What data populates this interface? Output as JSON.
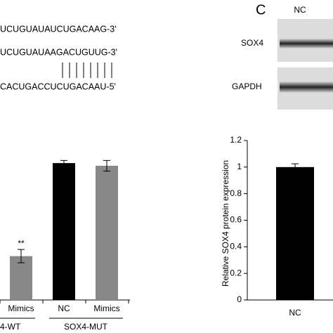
{
  "sequences": [
    "UCUGUAUAUCUGACAAG-3'",
    "UCUGUAUAAGACUGUUG-3'",
    "CACUGACCUCUGACAAU-5'"
  ],
  "panel_label": "C",
  "blot": {
    "column": "NC",
    "rows": [
      "SOX4",
      "GAPDH"
    ]
  },
  "chart_data": [
    {
      "type": "bar",
      "categories": [
        "Mimics",
        "NC",
        "Mimics"
      ],
      "groups": [
        "4-WT",
        "SOX4-MUT"
      ],
      "values": [
        0.33,
        1.03,
        1.01
      ],
      "errors": [
        0.05,
        0.02,
        0.04
      ],
      "colors": [
        "#888888",
        "#000000",
        "#888888"
      ],
      "value_annotations": [
        "**",
        null,
        null
      ]
    },
    {
      "type": "bar",
      "categories": [
        "NC"
      ],
      "values": [
        1.0
      ],
      "errors": [
        0.025
      ],
      "color": "#000000",
      "ylabel": "Relative SOX4 protein expression",
      "ylim": [
        0,
        1.2
      ],
      "yticks": [
        0,
        0.2,
        0.4,
        0.6,
        0.8,
        1,
        1.2
      ]
    }
  ]
}
